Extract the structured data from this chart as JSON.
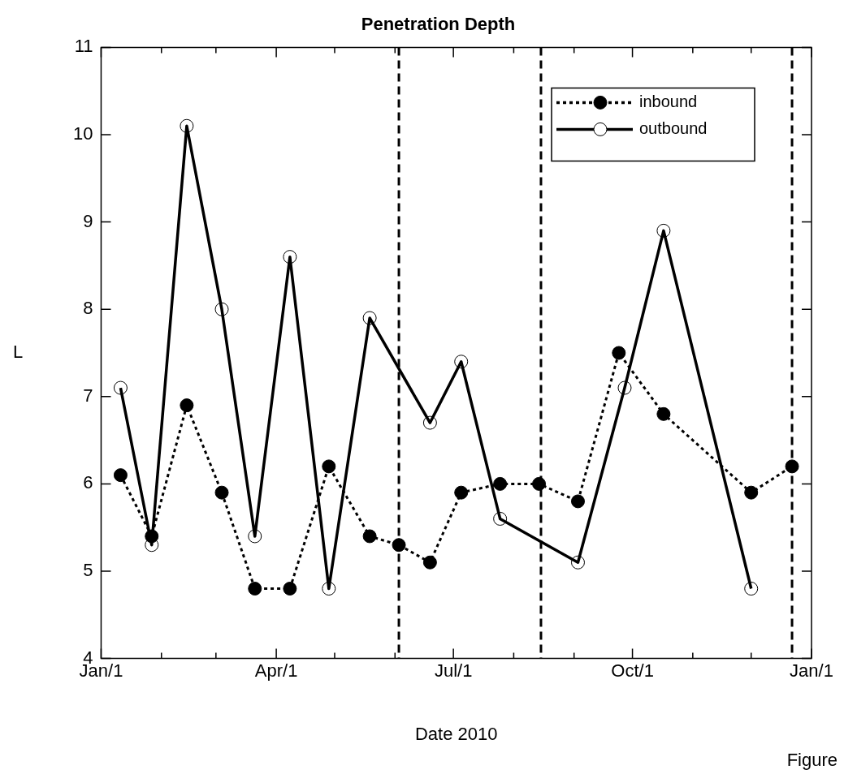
{
  "chart_data": {
    "type": "line",
    "title": "Penetration Depth",
    "xlabel": "Date 2010",
    "ylabel": "L",
    "series": [
      {
        "name": "inbound",
        "color": "#000000",
        "line_style": "dotted",
        "marker": "circle",
        "x": [
          "2010-01-11",
          "2010-01-27",
          "2010-02-14",
          "2010-03-04",
          "2010-03-21",
          "2010-04-08",
          "2010-04-28",
          "2010-05-19",
          "2010-06-03",
          "2010-06-19",
          "2010-07-05",
          "2010-07-25",
          "2010-08-14",
          "2010-09-03",
          "2010-09-24",
          "2010-10-17",
          "2010-12-01",
          "2010-12-22"
        ],
        "values": [
          6.1,
          5.4,
          6.9,
          5.9,
          4.8,
          4.8,
          6.2,
          5.4,
          5.3,
          5.1,
          5.9,
          6.0,
          6.0,
          5.8,
          7.5,
          6.8,
          5.9,
          6.2
        ]
      },
      {
        "name": "outbound",
        "color": "#000000",
        "line_style": "solid",
        "marker": "circle",
        "x": [
          "2010-01-11",
          "2010-01-27",
          "2010-02-14",
          "2010-03-04",
          "2010-03-21",
          "2010-04-08",
          "2010-04-28",
          "2010-05-19",
          "2010-06-19",
          "2010-07-05",
          "2010-07-25",
          "2010-09-03",
          "2010-09-27",
          "2010-10-17",
          "2010-12-01"
        ],
        "values": [
          7.1,
          5.3,
          10.1,
          8.0,
          5.4,
          8.6,
          4.8,
          7.9,
          6.7,
          7.4,
          5.6,
          5.1,
          7.1,
          8.9,
          4.8
        ]
      }
    ],
    "xlim": [
      "2010-01-01",
      "2011-01-01"
    ],
    "xticks": [
      {
        "value": "2010-01-01",
        "label": "Jan/1"
      },
      {
        "value": "2010-02-01",
        "label": null
      },
      {
        "value": "2010-03-01",
        "label": null
      },
      {
        "value": "2010-04-01",
        "label": "Apr/1"
      },
      {
        "value": "2010-05-01",
        "label": null
      },
      {
        "value": "2010-06-01",
        "label": null
      },
      {
        "value": "2010-07-01",
        "label": "Jul/1"
      },
      {
        "value": "2010-08-01",
        "label": null
      },
      {
        "value": "2010-09-01",
        "label": null
      },
      {
        "value": "2010-10-01",
        "label": "Oct/1"
      },
      {
        "value": "2010-11-01",
        "label": null
      },
      {
        "value": "2010-12-01",
        "label": null
      },
      {
        "value": "2011-01-01",
        "label": "Jan/1"
      }
    ],
    "ylim": [
      4,
      11
    ],
    "yticks": [
      4,
      5,
      6,
      7,
      8,
      9,
      10,
      11
    ],
    "ref_lines": [
      {
        "axis": "x",
        "value": "2010-06-03",
        "color": "#000000",
        "line_style": "dashed"
      },
      {
        "axis": "x",
        "value": "2010-08-15",
        "color": "#000000",
        "line_style": "dashed"
      },
      {
        "axis": "x",
        "value": "2010-12-22",
        "color": "#000000",
        "line_style": "dashed"
      }
    ],
    "annotations": [
      "Figure"
    ],
    "grid": false,
    "legend": "top right"
  }
}
